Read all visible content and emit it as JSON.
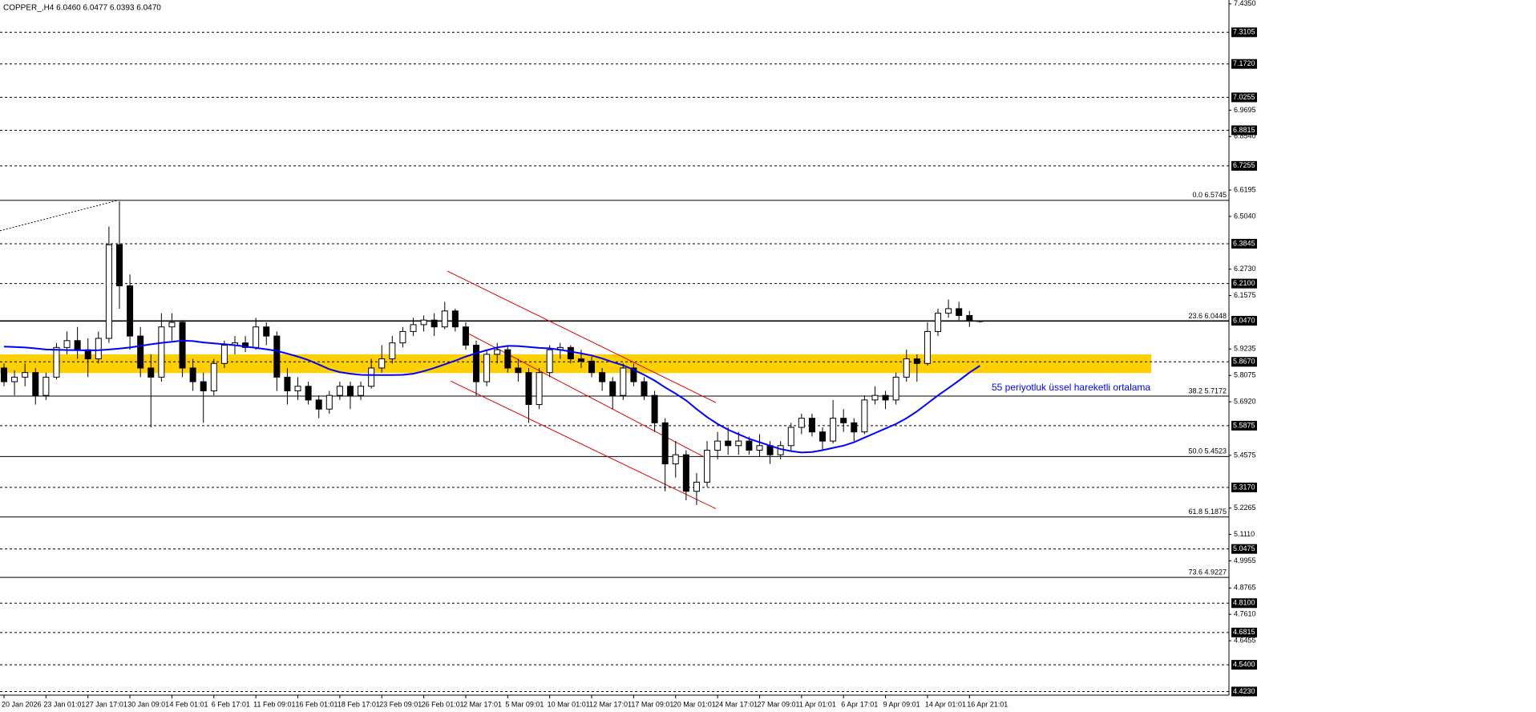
{
  "chart_data": {
    "type": "candlestick",
    "title": "COPPER_,H4  6.0460 6.0477 6.0393 6.0470",
    "categories": [
      "20 Jan 2026",
      null,
      null,
      null,
      "23 Jan 01:01",
      null,
      null,
      null,
      "27 Jan 17:01",
      null,
      null,
      null,
      "30 Jan 09:01",
      null,
      null,
      null,
      "4 Feb 01:01",
      null,
      null,
      null,
      "6 Feb 17:01",
      null,
      null,
      null,
      "11 Feb 09:01",
      null,
      null,
      null,
      "16 Feb 01:01",
      null,
      null,
      null,
      "18 Feb 17:01",
      null,
      null,
      null,
      "23 Feb 09:01",
      null,
      null,
      null,
      "26 Feb 01:01",
      null,
      null,
      null,
      "2 Mar 17:01",
      null,
      null,
      null,
      "5 Mar 09:01",
      null,
      null,
      null,
      "10 Mar 01:01",
      null,
      null,
      null,
      "12 Mar 17:01",
      null,
      null,
      null,
      "17 Mar 09:01",
      null,
      null,
      null,
      "20 Mar 01:01",
      null,
      null,
      null,
      "24 Mar 17:01",
      null,
      null,
      null,
      "27 Mar 09:01",
      null,
      null,
      null,
      "1 Apr 01:01",
      null,
      null,
      null,
      "6 Apr 17:01",
      null,
      null,
      null,
      "9 Apr 09:01",
      null,
      null,
      null,
      "14 Apr 01:01",
      null,
      null,
      null,
      "16 Apr 21:01",
      null
    ],
    "open": [
      5.84,
      5.78,
      5.8,
      5.82,
      5.72,
      5.8,
      5.93,
      5.96,
      5.92,
      5.88,
      5.97,
      6.38,
      6.2,
      5.98,
      5.84,
      5.8,
      6.02,
      6.04,
      5.84,
      5.78,
      5.74,
      5.86,
      5.94,
      5.95,
      5.93,
      6.02,
      5.98,
      5.8,
      5.74,
      5.76,
      5.7,
      5.66,
      5.72,
      5.76,
      5.72,
      5.76,
      5.84,
      5.88,
      5.95,
      6.0,
      6.03,
      6.05,
      6.02,
      6.09,
      6.02,
      5.94,
      5.78,
      5.9,
      5.92,
      5.84,
      5.82,
      5.68,
      5.82,
      5.92,
      5.93,
      5.88,
      5.87,
      5.82,
      5.78,
      5.72,
      5.84,
      5.78,
      5.72,
      5.6,
      5.42,
      5.46,
      5.3,
      5.34,
      5.48,
      5.52,
      5.5,
      5.52,
      5.48,
      5.5,
      5.46,
      5.5,
      5.58,
      5.62,
      5.56,
      5.52,
      5.62,
      5.6,
      5.56,
      5.7,
      5.72,
      5.7,
      5.8,
      5.88,
      5.86,
      6.0,
      6.08,
      6.1,
      6.07,
      6.046
    ],
    "high": [
      5.86,
      5.83,
      5.86,
      5.84,
      5.82,
      5.95,
      6.0,
      6.02,
      5.97,
      6.0,
      6.46,
      6.57,
      6.25,
      6.02,
      5.9,
      6.08,
      6.08,
      6.05,
      5.88,
      5.82,
      5.88,
      5.96,
      5.98,
      5.98,
      6.06,
      6.04,
      6.0,
      5.84,
      5.8,
      5.78,
      5.72,
      5.74,
      5.78,
      5.78,
      5.78,
      5.88,
      5.94,
      5.98,
      6.02,
      6.06,
      6.07,
      6.08,
      6.13,
      6.1,
      6.04,
      5.96,
      5.92,
      5.95,
      5.94,
      5.88,
      5.84,
      5.84,
      5.94,
      5.95,
      5.94,
      5.92,
      5.89,
      5.84,
      5.8,
      5.86,
      5.86,
      5.8,
      5.74,
      5.62,
      5.52,
      5.48,
      5.38,
      5.52,
      5.56,
      5.58,
      5.56,
      5.54,
      5.55,
      5.52,
      5.52,
      5.6,
      5.64,
      5.64,
      5.58,
      5.7,
      5.66,
      5.62,
      5.72,
      5.76,
      5.74,
      5.82,
      5.92,
      5.9,
      6.04,
      6.1,
      6.14,
      6.13,
      6.09,
      6.0477
    ],
    "low": [
      5.76,
      5.72,
      5.76,
      5.68,
      5.7,
      5.79,
      5.9,
      5.88,
      5.8,
      5.86,
      5.95,
      6.1,
      5.92,
      5.8,
      5.58,
      5.78,
      5.96,
      5.8,
      5.74,
      5.6,
      5.72,
      5.84,
      5.9,
      5.91,
      5.92,
      5.94,
      5.74,
      5.68,
      5.7,
      5.68,
      5.62,
      5.64,
      5.7,
      5.66,
      5.7,
      5.75,
      5.82,
      5.86,
      5.93,
      5.98,
      6.0,
      5.98,
      6.01,
      6.0,
      5.92,
      5.72,
      5.76,
      5.86,
      5.82,
      5.78,
      5.6,
      5.66,
      5.8,
      5.88,
      5.86,
      5.84,
      5.8,
      5.74,
      5.66,
      5.7,
      5.76,
      5.7,
      5.56,
      5.3,
      5.36,
      5.26,
      5.24,
      5.32,
      5.44,
      5.46,
      5.46,
      5.46,
      5.45,
      5.42,
      5.44,
      5.48,
      5.55,
      5.54,
      5.48,
      5.51,
      5.56,
      5.52,
      5.55,
      5.68,
      5.66,
      5.68,
      5.78,
      5.78,
      5.85,
      5.98,
      6.06,
      6.05,
      6.02,
      6.0393
    ],
    "close": [
      5.78,
      5.8,
      5.82,
      5.72,
      5.8,
      5.93,
      5.96,
      5.92,
      5.88,
      5.97,
      6.38,
      6.2,
      5.98,
      5.84,
      5.8,
      6.02,
      6.04,
      5.84,
      5.78,
      5.74,
      5.86,
      5.94,
      5.95,
      5.93,
      6.02,
      5.98,
      5.8,
      5.74,
      5.76,
      5.7,
      5.66,
      5.72,
      5.76,
      5.72,
      5.76,
      5.84,
      5.88,
      5.95,
      6.0,
      6.03,
      6.05,
      6.02,
      6.09,
      6.02,
      5.94,
      5.78,
      5.9,
      5.92,
      5.84,
      5.82,
      5.68,
      5.82,
      5.92,
      5.93,
      5.88,
      5.87,
      5.82,
      5.78,
      5.72,
      5.84,
      5.78,
      5.72,
      5.6,
      5.42,
      5.46,
      5.3,
      5.34,
      5.48,
      5.52,
      5.5,
      5.52,
      5.48,
      5.5,
      5.46,
      5.5,
      5.58,
      5.62,
      5.56,
      5.52,
      5.62,
      5.6,
      5.56,
      5.7,
      5.72,
      5.7,
      5.8,
      5.88,
      5.86,
      6.0,
      6.08,
      6.1,
      6.07,
      6.046,
      6.047
    ],
    "series": [
      {
        "name": "55 periyotluk üssel hareketli ortalama",
        "color": "#0000ff",
        "values": [
          5.934,
          5.932,
          5.93,
          5.926,
          5.921,
          5.92,
          5.919,
          5.918,
          5.917,
          5.918,
          5.921,
          5.925,
          5.93,
          5.937,
          5.944,
          5.95,
          5.955,
          5.96,
          5.958,
          5.952,
          5.948,
          5.944,
          5.94,
          5.934,
          5.928,
          5.922,
          5.915,
          5.903,
          5.89,
          5.875,
          5.855,
          5.835,
          5.822,
          5.815,
          5.81,
          5.809,
          5.809,
          5.809,
          5.81,
          5.815,
          5.826,
          5.84,
          5.856,
          5.872,
          5.89,
          5.905,
          5.918,
          5.93,
          5.937,
          5.936,
          5.932,
          5.928,
          5.926,
          5.92,
          5.912,
          5.904,
          5.895,
          5.882,
          5.866,
          5.852,
          5.832,
          5.81,
          5.785,
          5.755,
          5.728,
          5.698,
          5.66,
          5.625,
          5.595,
          5.57,
          5.55,
          5.53,
          5.515,
          5.5,
          5.485,
          5.476,
          5.47,
          5.472,
          5.48,
          5.49,
          5.5,
          5.515,
          5.535,
          5.555,
          5.575,
          5.595,
          5.62,
          5.65,
          5.685,
          5.72,
          5.752,
          5.785,
          5.82,
          5.85
        ]
      }
    ],
    "ylim": [
      4.407,
      7.452
    ],
    "yticks": [
      {
        "value": 7.435,
        "label": "7.4350"
      },
      {
        "value": 6.9695,
        "label": "6.9695"
      },
      {
        "value": 6.854,
        "label": "6.8540"
      },
      {
        "value": 6.6195,
        "label": "6.6195"
      },
      {
        "value": 6.504,
        "label": "6.5040"
      },
      {
        "value": 6.273,
        "label": "6.2730"
      },
      {
        "value": 6.1575,
        "label": "6.1575"
      },
      {
        "value": 5.9235,
        "label": "5.9235"
      },
      {
        "value": 5.8075,
        "label": "5.8075"
      },
      {
        "value": 5.692,
        "label": "5.6920"
      },
      {
        "value": 5.4575,
        "label": "5.4575"
      },
      {
        "value": 5.2265,
        "label": "5.2265"
      },
      {
        "value": 5.111,
        "label": "5.1110"
      },
      {
        "value": 4.9955,
        "label": "4.9955"
      },
      {
        "value": 4.8765,
        "label": "4.8765"
      },
      {
        "value": 4.761,
        "label": "4.7610"
      },
      {
        "value": 4.6455,
        "label": "4.6455"
      }
    ],
    "levels": [
      {
        "value": 7.3105,
        "label": "7.3105"
      },
      {
        "value": 7.172,
        "label": "7.1720"
      },
      {
        "value": 7.0255,
        "label": "7.0255"
      },
      {
        "value": 6.8815,
        "label": "6.8815"
      },
      {
        "value": 6.7255,
        "label": "6.7255"
      },
      {
        "value": 6.3845,
        "label": "6.3845"
      },
      {
        "value": 6.21,
        "label": "6.2100"
      },
      {
        "value": 5.867,
        "label": "5.8670"
      },
      {
        "value": 5.5875,
        "label": "5.5875"
      },
      {
        "value": 5.317,
        "label": "5.3170"
      },
      {
        "value": 5.0475,
        "label": "5.0475"
      },
      {
        "value": 4.81,
        "label": "4.8100"
      },
      {
        "value": 4.6815,
        "label": "4.6815"
      },
      {
        "value": 4.54,
        "label": "4.5400"
      },
      {
        "value": 4.423,
        "label": "4.4230"
      }
    ],
    "fib_levels": [
      {
        "value": 6.5745,
        "label": "0.0 6.5745"
      },
      {
        "value": 6.0448,
        "label": "23.6 6.0448"
      },
      {
        "value": 5.7172,
        "label": "38.2 5.7172"
      },
      {
        "value": 5.4523,
        "label": "50.0 5.4523"
      },
      {
        "value": 5.1875,
        "label": "61.8 5.1875"
      },
      {
        "value": 4.9227,
        "label": "73.6 4.9227"
      }
    ],
    "current_price": {
      "value": 6.047,
      "label": "6.0470"
    },
    "zone": [
      5.818,
      5.9
    ],
    "zone_color": "#ffd000"
  }
}
